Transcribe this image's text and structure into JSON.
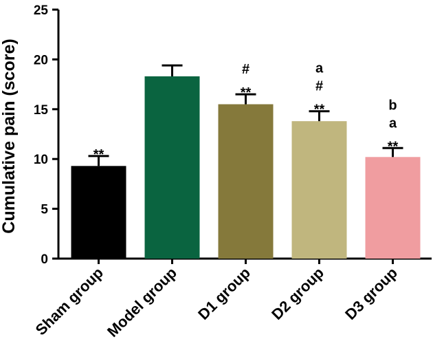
{
  "chart_data": {
    "type": "bar",
    "title": "",
    "xlabel": "",
    "ylabel": "Cumulative pain (score)",
    "ylim": [
      0,
      25
    ],
    "yticks": [
      "0",
      "5",
      "10",
      "15",
      "20",
      "25"
    ],
    "grid": false,
    "categories": [
      "Sham group",
      "Model group",
      "D1 group",
      "D2 group",
      "D3 group"
    ],
    "values": [
      9.3,
      18.3,
      15.5,
      13.8,
      10.2
    ],
    "errors": [
      1.0,
      1.1,
      1.0,
      1.0,
      0.9
    ],
    "colors": [
      "#000000",
      "#0a6440",
      "#85793b",
      "#c0b67e",
      "#f09da0"
    ],
    "annotations": [
      [
        "**"
      ],
      [],
      [
        "**",
        "#"
      ],
      [
        "**",
        "#",
        "a"
      ],
      [
        "**",
        "a",
        "b"
      ]
    ]
  }
}
